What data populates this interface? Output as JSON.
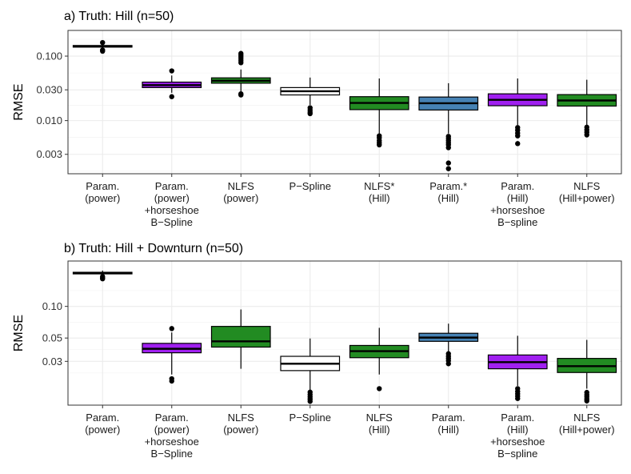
{
  "chart_data": [
    {
      "type": "box",
      "title": "a) Truth: Hill (n=50)",
      "ylabel": "RMSE",
      "yscale": "log10",
      "ylim": [
        0.0015,
        0.25
      ],
      "yticks": [
        0.003,
        0.01,
        0.03,
        0.1
      ],
      "ytick_labels": [
        "0.003",
        "0.010",
        "0.030",
        "0.100"
      ],
      "categories": [
        [
          "Param.",
          "(power)"
        ],
        [
          "Param.",
          "(power)",
          "+horseshoe",
          "B−Spline"
        ],
        [
          "NLFS",
          "(power)"
        ],
        [
          "P−Spline"
        ],
        [
          "NLFS*",
          "(Hill)"
        ],
        [
          "Param.*",
          "(Hill)"
        ],
        [
          "Param.",
          "(Hill)",
          "+horseshoe",
          "B−spline"
        ],
        [
          "NLFS",
          "(Hill+power)"
        ]
      ],
      "boxes": [
        {
          "color": "#1a1a1a",
          "whisker_low": 0.128,
          "q1": 0.138,
          "median": 0.141,
          "q3": 0.146,
          "whisker_high": 0.151,
          "outliers": [
            0.162,
            0.124,
            0.119
          ]
        },
        {
          "color": "#a020f0",
          "whisker_low": 0.027,
          "q1": 0.0325,
          "median": 0.0355,
          "q3": 0.0395,
          "whisker_high": 0.05,
          "outliers": [
            0.059,
            0.0235
          ]
        },
        {
          "color": "#228b22",
          "whisker_low": 0.028,
          "q1": 0.038,
          "median": 0.0415,
          "q3": 0.046,
          "whisker_high": 0.062,
          "outliers": [
            0.11,
            0.103,
            0.097,
            0.091,
            0.085,
            0.079,
            0.026,
            0.025
          ]
        },
        {
          "color": "#ffffff",
          "whisker_low": 0.0175,
          "q1": 0.025,
          "median": 0.0285,
          "q3": 0.0325,
          "whisker_high": 0.0465,
          "outliers": [
            0.0158,
            0.0146,
            0.0136,
            0.0128
          ]
        },
        {
          "color": "#228b22",
          "whisker_low": 0.0063,
          "q1": 0.0148,
          "median": 0.0188,
          "q3": 0.0235,
          "whisker_high": 0.045,
          "outliers": [
            0.0058,
            0.0054,
            0.0049,
            0.0045,
            0.0042
          ]
        },
        {
          "color": "#4682b4",
          "whisker_low": 0.0063,
          "q1": 0.0146,
          "median": 0.0186,
          "q3": 0.0232,
          "whisker_high": 0.038,
          "outliers": [
            0.0057,
            0.0053,
            0.0049,
            0.0045,
            0.0042,
            0.0038,
            0.0022,
            0.0018
          ]
        },
        {
          "color": "#a020f0",
          "whisker_low": 0.0085,
          "q1": 0.017,
          "median": 0.021,
          "q3": 0.026,
          "whisker_high": 0.045,
          "outliers": [
            0.0078,
            0.0071,
            0.0064,
            0.0058,
            0.0044
          ]
        },
        {
          "color": "#228b22",
          "whisker_low": 0.0085,
          "q1": 0.0168,
          "median": 0.0205,
          "q3": 0.0253,
          "whisker_high": 0.043,
          "outliers": [
            0.0079,
            0.0072,
            0.0066,
            0.006
          ]
        }
      ]
    },
    {
      "type": "box",
      "title": "b) Truth: Hill + Downturn (n=50)",
      "ylabel": "RMSE",
      "yscale": "log10",
      "ylim": [
        0.0115,
        0.27
      ],
      "yticks": [
        0.03,
        0.05,
        0.1
      ],
      "ytick_labels": [
        "0.03",
        "0.05",
        "0.10"
      ],
      "categories": [
        [
          "Param.",
          "(power)"
        ],
        [
          "Param.",
          "(power)",
          "+horseshoe",
          "B−Spline"
        ],
        [
          "NLFS",
          "(power)"
        ],
        [
          "P−Spline"
        ],
        [
          "NLFS",
          "(Hill)"
        ],
        [
          "Param.",
          "(Hill)"
        ],
        [
          "Param.",
          "(Hill)",
          "+horseshoe",
          "B−spline"
        ],
        [
          "NLFS",
          "(Hill+power)"
        ]
      ],
      "boxes": [
        {
          "color": "#1a1a1a",
          "whisker_low": 0.2,
          "q1": 0.204,
          "median": 0.207,
          "q3": 0.211,
          "whisker_high": 0.219,
          "outliers": [
            0.192,
            0.187,
            0.183
          ]
        },
        {
          "color": "#a020f0",
          "whisker_low": 0.0225,
          "q1": 0.0362,
          "median": 0.0395,
          "q3": 0.0445,
          "whisker_high": 0.0565,
          "outliers": [
            0.0615,
            0.0205,
            0.0195
          ]
        },
        {
          "color": "#228b22",
          "whisker_low": 0.0255,
          "q1": 0.041,
          "median": 0.0465,
          "q3": 0.0645,
          "whisker_high": 0.0935,
          "outliers": []
        },
        {
          "color": "#ffffff",
          "whisker_low": 0.016,
          "q1": 0.0245,
          "median": 0.0285,
          "q3": 0.0335,
          "whisker_high": 0.0495,
          "outliers": [
            0.0153,
            0.0145,
            0.0138,
            0.0131,
            0.0125
          ]
        },
        {
          "color": "#228b22",
          "whisker_low": 0.0225,
          "q1": 0.0325,
          "median": 0.0375,
          "q3": 0.0425,
          "whisker_high": 0.0625,
          "outliers": [
            0.0165
          ]
        },
        {
          "color": "#4682b4",
          "whisker_low": 0.0285,
          "q1": 0.0465,
          "median": 0.0505,
          "q3": 0.0555,
          "whisker_high": 0.0685,
          "outliers": [
            0.0355,
            0.0335,
            0.032,
            0.0305,
            0.0285
          ]
        },
        {
          "color": "#a020f0",
          "whisker_low": 0.0175,
          "q1": 0.0255,
          "median": 0.0295,
          "q3": 0.0345,
          "whisker_high": 0.0525,
          "outliers": [
            0.0165,
            0.0155,
            0.0147,
            0.014,
            0.0133
          ]
        },
        {
          "color": "#228b22",
          "whisker_low": 0.0165,
          "q1": 0.0235,
          "median": 0.027,
          "q3": 0.032,
          "whisker_high": 0.048,
          "outliers": [
            0.0152,
            0.0144,
            0.0138,
            0.0131,
            0.0126
          ]
        }
      ]
    }
  ]
}
